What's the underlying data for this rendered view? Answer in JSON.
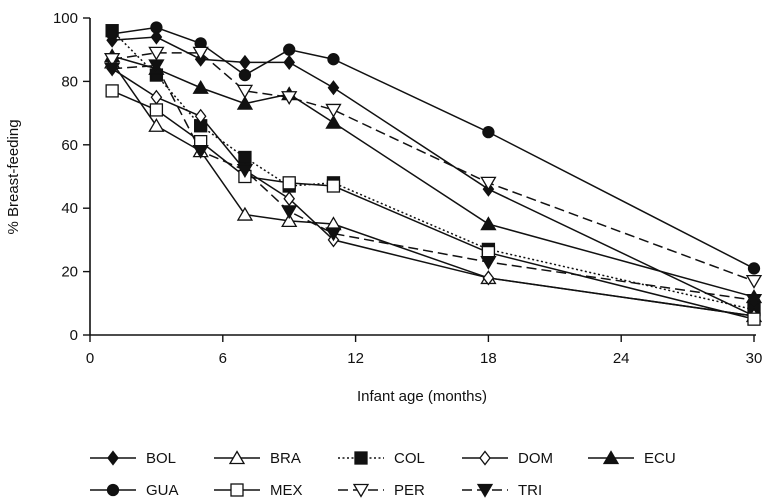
{
  "chart_data": {
    "type": "line",
    "title": "",
    "xlabel": "Infant age (months)",
    "ylabel": "% Breast-feeding",
    "xlim": [
      0,
      30
    ],
    "ylim": [
      0,
      100
    ],
    "xticks": [
      0,
      6,
      12,
      18,
      24,
      30
    ],
    "yticks": [
      0,
      20,
      40,
      60,
      80,
      100
    ],
    "grid": false,
    "legend_position": "bottom",
    "series": [
      {
        "name": "BOL",
        "marker": "diamond-filled",
        "dash": "solid",
        "x": [
          1,
          3,
          5,
          7,
          9,
          11,
          18,
          30
        ],
        "y": [
          93,
          94,
          87,
          86,
          86,
          78,
          46,
          6
        ]
      },
      {
        "name": "BRA",
        "marker": "triangle-open",
        "dash": "solid",
        "x": [
          1,
          3,
          5,
          7,
          9,
          11,
          18,
          30
        ],
        "y": [
          86,
          66,
          58,
          38,
          36,
          35,
          18,
          6
        ]
      },
      {
        "name": "COL",
        "marker": "square-filled",
        "dash": "dotted",
        "x": [
          1,
          3,
          5,
          7,
          9,
          11,
          18,
          30
        ],
        "y": [
          96,
          82,
          66,
          56,
          47,
          48,
          27,
          8
        ]
      },
      {
        "name": "DOM",
        "marker": "diamond-open",
        "dash": "solid",
        "x": [
          1,
          3,
          5,
          7,
          9,
          11,
          18,
          30
        ],
        "y": [
          84,
          75,
          69,
          52,
          43,
          30,
          18,
          6
        ]
      },
      {
        "name": "ECU",
        "marker": "triangle-filled",
        "dash": "solid",
        "x": [
          1,
          3,
          5,
          7,
          9,
          11,
          18,
          30
        ],
        "y": [
          88,
          84,
          78,
          73,
          76,
          67,
          35,
          12
        ]
      },
      {
        "name": "GUA",
        "marker": "circle-filled",
        "dash": "solid",
        "x": [
          1,
          3,
          5,
          7,
          9,
          11,
          18,
          30
        ],
        "y": [
          95,
          97,
          92,
          82,
          90,
          87,
          64,
          21
        ]
      },
      {
        "name": "MEX",
        "marker": "square-open",
        "dash": "solid",
        "x": [
          1,
          3,
          5,
          7,
          9,
          11,
          18,
          30
        ],
        "y": [
          77,
          71,
          61,
          50,
          48,
          47,
          26,
          5
        ]
      },
      {
        "name": "PER",
        "marker": "triangle-down-open",
        "dash": "dashed",
        "x": [
          1,
          3,
          5,
          7,
          9,
          11,
          18,
          30
        ],
        "y": [
          87,
          89,
          89,
          77,
          75,
          71,
          48,
          17
        ]
      },
      {
        "name": "TRI",
        "marker": "triangle-down-filled",
        "dash": "dashed",
        "x": [
          1,
          3,
          5,
          7,
          9,
          11,
          18,
          30
        ],
        "y": [
          84,
          85,
          58,
          52,
          39,
          32,
          23,
          11
        ]
      }
    ]
  }
}
